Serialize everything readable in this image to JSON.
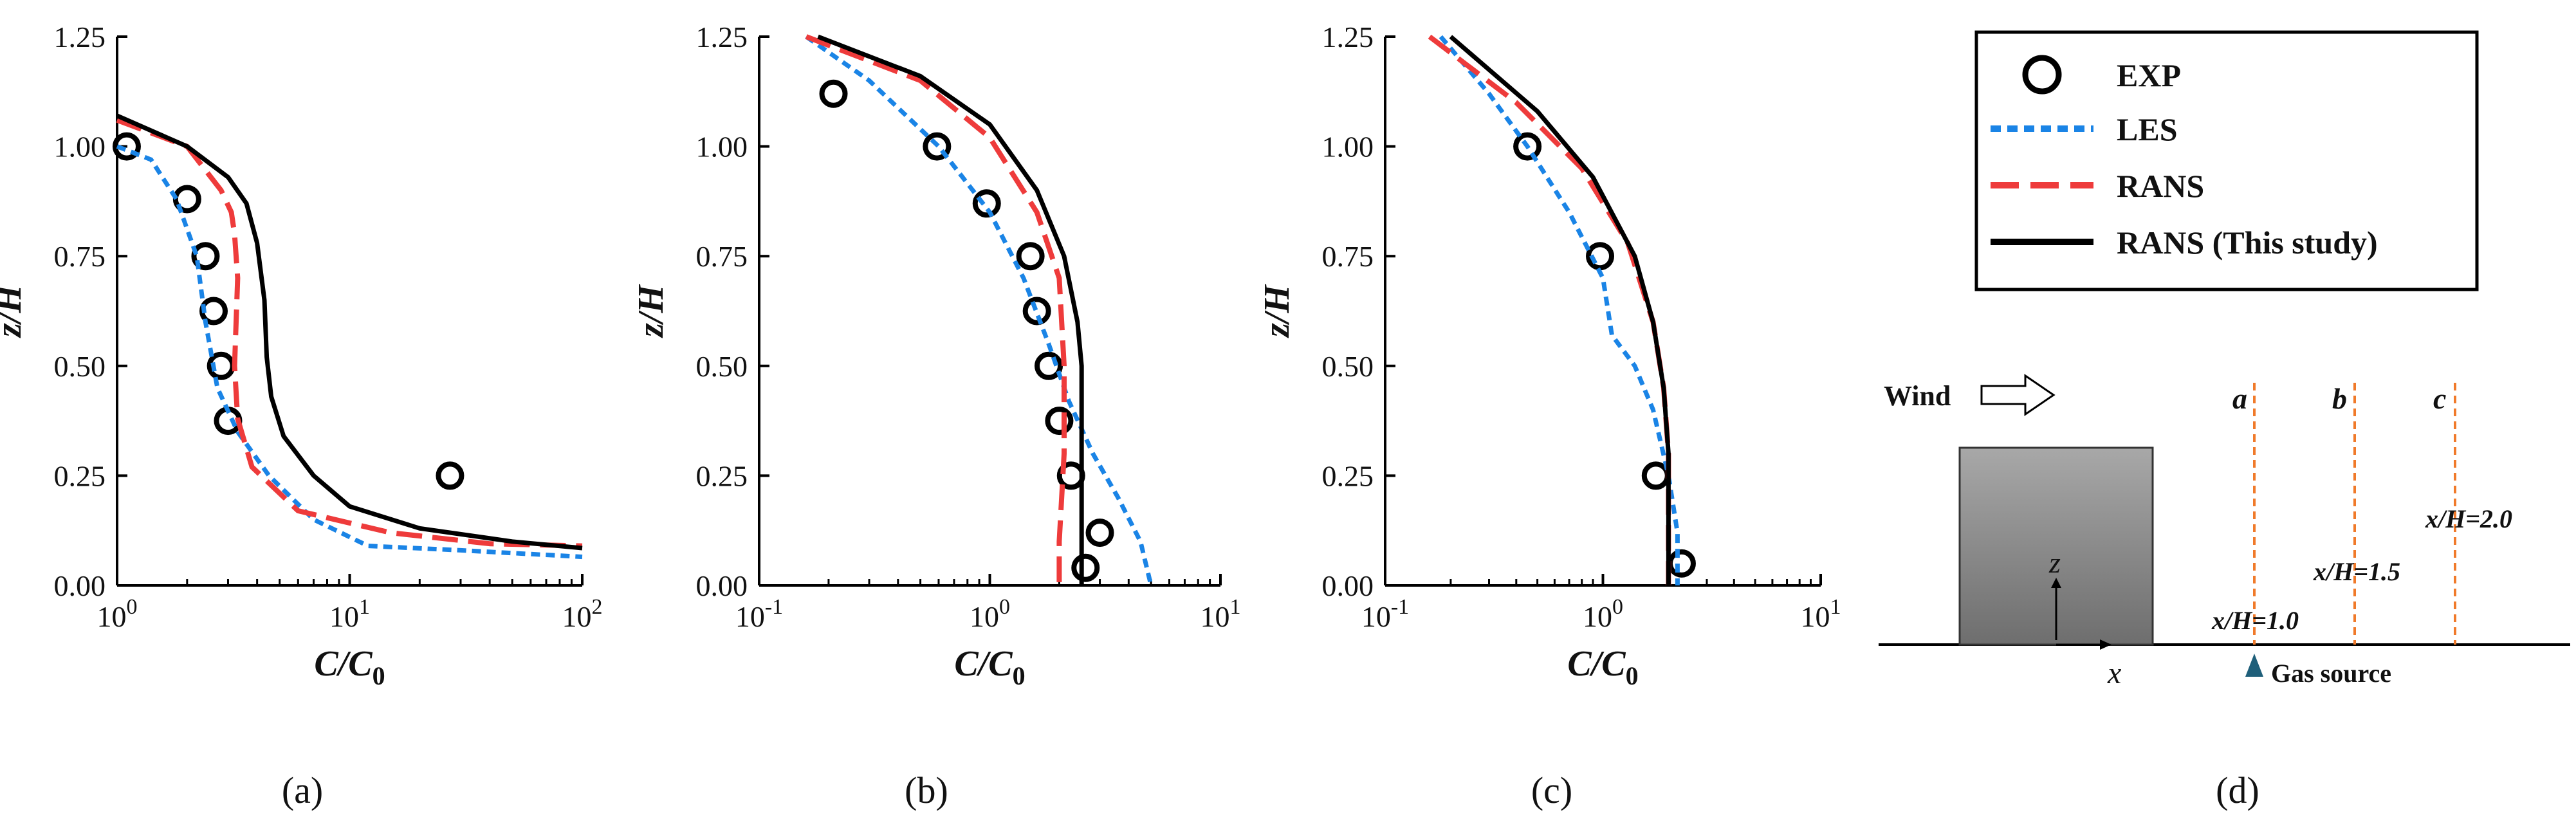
{
  "chart_data": [
    {
      "type": "line",
      "panel": "a",
      "x_scale": "log",
      "xlim": [
        1,
        100
      ],
      "ylim": [
        0,
        1.25
      ],
      "x_ticks": [
        1,
        10,
        100
      ],
      "y_ticks": [
        0,
        0.25,
        0.5,
        0.75,
        1.0,
        1.25
      ],
      "xlabel": "C/C0",
      "ylabel": "z/H",
      "series": [
        {
          "name": "EXP",
          "style": "marker",
          "points": [
            [
              1.1,
              1.0
            ],
            [
              2.0,
              0.88
            ],
            [
              2.4,
              0.75
            ],
            [
              2.6,
              0.625
            ],
            [
              2.8,
              0.5
            ],
            [
              3.0,
              0.375
            ],
            [
              27,
              0.25
            ]
          ]
        },
        {
          "name": "LES",
          "style": "dotted",
          "points": [
            [
              1.0,
              1.0
            ],
            [
              1.4,
              0.97
            ],
            [
              1.8,
              0.88
            ],
            [
              2.2,
              0.75
            ],
            [
              2.4,
              0.6
            ],
            [
              2.7,
              0.45
            ],
            [
              3.3,
              0.35
            ],
            [
              4.5,
              0.25
            ],
            [
              7,
              0.15
            ],
            [
              12,
              0.09
            ],
            [
              30,
              0.08
            ],
            [
              100,
              0.065
            ]
          ]
        },
        {
          "name": "RANS",
          "style": "dashed",
          "points": [
            [
              1.0,
              1.06
            ],
            [
              2.0,
              1.0
            ],
            [
              2.8,
              0.9
            ],
            [
              3.1,
              0.85
            ],
            [
              3.2,
              0.8
            ],
            [
              3.3,
              0.7
            ],
            [
              3.2,
              0.5
            ],
            [
              3.3,
              0.38
            ],
            [
              3.8,
              0.27
            ],
            [
              6,
              0.17
            ],
            [
              15,
              0.12
            ],
            [
              40,
              0.095
            ],
            [
              100,
              0.09
            ]
          ]
        },
        {
          "name": "RANS (This study)",
          "style": "solid",
          "points": [
            [
              1.0,
              1.07
            ],
            [
              2.0,
              1.0
            ],
            [
              3.0,
              0.93
            ],
            [
              3.6,
              0.87
            ],
            [
              4.0,
              0.78
            ],
            [
              4.3,
              0.65
            ],
            [
              4.4,
              0.52
            ],
            [
              4.6,
              0.43
            ],
            [
              5.2,
              0.34
            ],
            [
              7,
              0.25
            ],
            [
              10,
              0.18
            ],
            [
              20,
              0.13
            ],
            [
              50,
              0.1
            ],
            [
              100,
              0.085
            ]
          ]
        }
      ]
    },
    {
      "type": "line",
      "panel": "b",
      "x_scale": "log",
      "xlim": [
        0.1,
        10
      ],
      "ylim": [
        0,
        1.25
      ],
      "x_ticks": [
        0.1,
        1,
        10
      ],
      "y_ticks": [
        0,
        0.25,
        0.5,
        0.75,
        1.0,
        1.25
      ],
      "xlabel": "C/C0",
      "ylabel": "z/H",
      "series": [
        {
          "name": "EXP",
          "style": "marker",
          "points": [
            [
              0.21,
              1.12
            ],
            [
              0.59,
              1.0
            ],
            [
              0.97,
              0.87
            ],
            [
              1.5,
              0.75
            ],
            [
              1.6,
              0.625
            ],
            [
              1.8,
              0.5
            ],
            [
              2.0,
              0.375
            ],
            [
              2.25,
              0.25
            ],
            [
              3.0,
              0.12
            ],
            [
              2.6,
              0.04
            ]
          ]
        },
        {
          "name": "LES",
          "style": "dotted",
          "points": [
            [
              0.16,
              1.25
            ],
            [
              0.3,
              1.15
            ],
            [
              0.6,
              1.0
            ],
            [
              1.0,
              0.85
            ],
            [
              1.4,
              0.7
            ],
            [
              1.8,
              0.55
            ],
            [
              2.2,
              0.42
            ],
            [
              2.8,
              0.3
            ],
            [
              3.6,
              0.2
            ],
            [
              4.5,
              0.1
            ],
            [
              5.0,
              0.0
            ]
          ]
        },
        {
          "name": "RANS",
          "style": "dashed",
          "points": [
            [
              0.16,
              1.25
            ],
            [
              0.5,
              1.15
            ],
            [
              1.0,
              1.02
            ],
            [
              1.6,
              0.85
            ],
            [
              2.0,
              0.7
            ],
            [
              2.1,
              0.5
            ],
            [
              2.1,
              0.3
            ],
            [
              2.0,
              0.1
            ],
            [
              2.0,
              0.0
            ]
          ]
        },
        {
          "name": "RANS (This study)",
          "style": "solid",
          "points": [
            [
              0.18,
              1.25
            ],
            [
              0.5,
              1.16
            ],
            [
              1.0,
              1.05
            ],
            [
              1.6,
              0.9
            ],
            [
              2.1,
              0.75
            ],
            [
              2.4,
              0.6
            ],
            [
              2.5,
              0.5
            ],
            [
              2.5,
              0.3
            ],
            [
              2.5,
              0.1
            ],
            [
              2.5,
              0.0
            ]
          ]
        }
      ]
    },
    {
      "type": "line",
      "panel": "c",
      "x_scale": "log",
      "xlim": [
        0.1,
        10
      ],
      "ylim": [
        0,
        1.25
      ],
      "x_ticks": [
        0.1,
        1,
        10
      ],
      "y_ticks": [
        0,
        0.25,
        0.5,
        0.75,
        1.0,
        1.25
      ],
      "xlabel": "C/C0",
      "ylabel": "z/H",
      "series": [
        {
          "name": "EXP",
          "style": "marker",
          "points": [
            [
              0.45,
              1.0
            ],
            [
              0.97,
              0.75
            ],
            [
              1.75,
              0.25
            ],
            [
              2.3,
              0.05
            ]
          ]
        },
        {
          "name": "LES",
          "style": "dotted",
          "points": [
            [
              0.18,
              1.25
            ],
            [
              0.3,
              1.12
            ],
            [
              0.45,
              1.0
            ],
            [
              0.7,
              0.85
            ],
            [
              1.0,
              0.7
            ],
            [
              1.1,
              0.57
            ],
            [
              1.4,
              0.5
            ],
            [
              1.7,
              0.4
            ],
            [
              2.0,
              0.25
            ],
            [
              2.2,
              0.12
            ],
            [
              2.2,
              0.0
            ]
          ]
        },
        {
          "name": "RANS",
          "style": "dashed",
          "points": [
            [
              0.16,
              1.25
            ],
            [
              0.4,
              1.1
            ],
            [
              0.8,
              0.95
            ],
            [
              1.3,
              0.78
            ],
            [
              1.7,
              0.6
            ],
            [
              1.9,
              0.45
            ],
            [
              2.0,
              0.3
            ],
            [
              2.0,
              0.1
            ],
            [
              2.0,
              0.0
            ]
          ]
        },
        {
          "name": "RANS (This study)",
          "style": "solid",
          "points": [
            [
              0.2,
              1.25
            ],
            [
              0.5,
              1.08
            ],
            [
              0.9,
              0.93
            ],
            [
              1.4,
              0.75
            ],
            [
              1.7,
              0.6
            ],
            [
              1.9,
              0.45
            ],
            [
              2.0,
              0.3
            ],
            [
              2.0,
              0.1
            ],
            [
              2.0,
              0.0
            ]
          ]
        }
      ]
    }
  ],
  "legend": {
    "items": [
      {
        "label": "EXP",
        "style": "marker",
        "color": "#000000"
      },
      {
        "label": "LES",
        "style": "dotted",
        "color": "#1a84e6"
      },
      {
        "label": "RANS",
        "style": "dashed",
        "color": "#ee3b3b"
      },
      {
        "label": "RANS (This study)",
        "style": "solid",
        "color": "#000000"
      }
    ]
  },
  "colors": {
    "les": "#1a84e6",
    "rans": "#ee3b3b",
    "rans_study": "#000000",
    "exp": "#000000",
    "building": "#8a8a8a",
    "probe_line": "#f07a2a",
    "source": "#1f5f7a"
  },
  "panel_labels": [
    "(a)",
    "(b)",
    "(c)",
    "(d)"
  ],
  "diagram": {
    "wind_label": "Wind",
    "line_labels": [
      "a",
      "b",
      "c"
    ],
    "positions": [
      "x/H=1.0",
      "x/H=1.5",
      "x/H=2.0"
    ],
    "z_axis": "z",
    "x_axis": "x",
    "source_label": "Gas source"
  }
}
